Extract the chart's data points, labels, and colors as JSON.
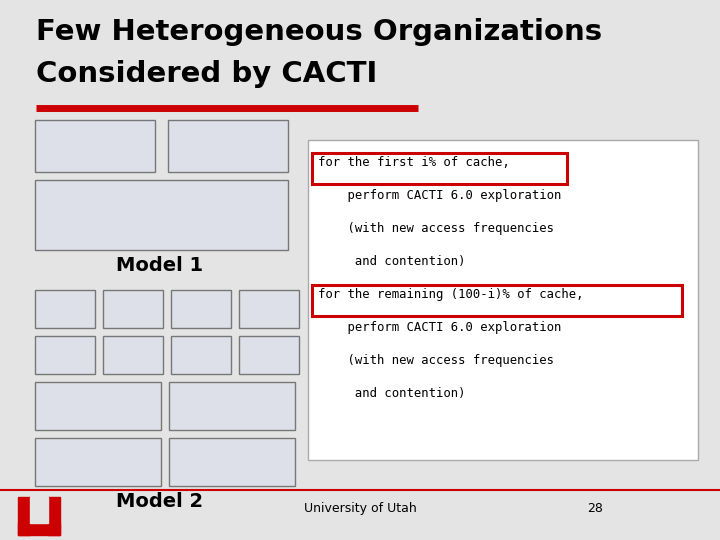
{
  "title_line1": "Few Heterogeneous Organizations",
  "title_line2": "Considered by CACTI",
  "bg_color": "#e4e4e4",
  "box_fill": "#dde0e8",
  "box_edge": "#777777",
  "red_color": "#cc0000",
  "footer_text": "University of Utah",
  "footer_num": "28",
  "model1_label": "Model 1",
  "model2_label": "Model 2",
  "code_box_fill": "#ffffff",
  "code_box_edge": "#aaaaaa",
  "highlight_edge": "#cc0000",
  "mono_lines": [
    "for the first i% of cache,",
    "    perform CACTI 6.0 exploration",
    "    (with new access frequencies",
    "     and contention)",
    "for the remaining (100-i)% of cache,",
    "    perform CACTI 6.0 exploration",
    "    (with new access frequencies",
    "     and contention)"
  ]
}
